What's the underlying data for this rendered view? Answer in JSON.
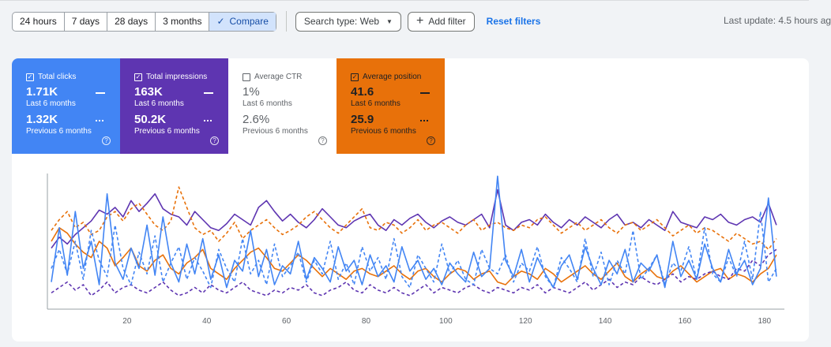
{
  "toolbar": {
    "ranges": [
      "24 hours",
      "7 days",
      "28 days",
      "3 months"
    ],
    "compare_label": "Compare",
    "search_type_label": "Search type: Web",
    "add_filter_label": "Add filter",
    "reset_label": "Reset filters",
    "last_update": "Last update: 4.5 hours ag"
  },
  "metrics": {
    "clicks": {
      "title": "Total clicks",
      "value": "1.71K",
      "period": "Last 6 months",
      "prev_value": "1.32K",
      "prev_period": "Previous 6 months",
      "checked": true,
      "color": "#4285f4"
    },
    "impressions": {
      "title": "Total impressions",
      "value": "163K",
      "period": "Last 6 months",
      "prev_value": "50.2K",
      "prev_period": "Previous 6 months",
      "checked": true,
      "color": "#5e35b1"
    },
    "ctr": {
      "title": "Average CTR",
      "value": "1%",
      "period": "Last 6 months",
      "prev_value": "2.6%",
      "prev_period": "Previous 6 months",
      "checked": false
    },
    "position": {
      "title": "Average position",
      "value": "41.6",
      "period": "Last 6 months",
      "prev_value": "25.9",
      "prev_period": "Previous 6 months",
      "checked": true,
      "color": "#e8710a"
    }
  },
  "chart_data": {
    "type": "line",
    "xlim": [
      0,
      185
    ],
    "ylim": [
      0,
      100
    ],
    "xticks": [
      20,
      40,
      60,
      80,
      100,
      120,
      140,
      160,
      180
    ],
    "x": [
      1,
      3,
      5,
      7,
      9,
      11,
      13,
      15,
      17,
      19,
      21,
      23,
      25,
      27,
      29,
      31,
      33,
      35,
      37,
      39,
      41,
      43,
      45,
      47,
      49,
      51,
      53,
      55,
      57,
      59,
      61,
      63,
      65,
      67,
      69,
      71,
      73,
      75,
      77,
      79,
      81,
      83,
      85,
      87,
      89,
      91,
      93,
      95,
      97,
      99,
      101,
      103,
      105,
      107,
      109,
      111,
      113,
      115,
      117,
      119,
      121,
      123,
      125,
      127,
      129,
      131,
      133,
      135,
      137,
      139,
      141,
      143,
      145,
      147,
      149,
      151,
      153,
      155,
      157,
      159,
      161,
      163,
      165,
      167,
      169,
      171,
      173,
      175,
      177,
      179,
      181,
      183
    ],
    "series": [
      {
        "color": "#5e35b1",
        "style": "solid",
        "values": [
          45,
          53,
          48,
          55,
          60,
          65,
          73,
          70,
          75,
          68,
          80,
          72,
          78,
          85,
          74,
          70,
          68,
          62,
          72,
          66,
          60,
          58,
          63,
          70,
          66,
          62,
          75,
          80,
          72,
          65,
          70,
          64,
          60,
          66,
          74,
          68,
          62,
          60,
          65,
          68,
          70,
          62,
          58,
          66,
          62,
          67,
          70,
          64,
          60,
          65,
          68,
          64,
          62,
          66,
          70,
          60,
          88,
          62,
          58,
          64,
          66,
          62,
          70,
          64,
          60,
          66,
          62,
          68,
          64,
          60,
          66,
          70,
          62,
          64,
          60,
          66,
          62,
          58,
          72,
          64,
          62,
          60,
          68,
          66,
          70,
          64,
          62,
          66,
          68,
          64,
          78,
          62
        ]
      },
      {
        "color": "#e8710a",
        "style": "solid",
        "values": [
          50,
          60,
          56,
          48,
          42,
          38,
          50,
          45,
          32,
          38,
          45,
          32,
          28,
          36,
          40,
          30,
          26,
          34,
          38,
          44,
          30,
          26,
          22,
          30,
          36,
          42,
          45,
          38,
          30,
          28,
          34,
          40,
          36,
          30,
          24,
          30,
          26,
          22,
          28,
          30,
          26,
          24,
          28,
          32,
          26,
          22,
          28,
          30,
          24,
          20,
          26,
          30,
          28,
          22,
          26,
          28,
          20,
          18,
          24,
          28,
          26,
          22,
          30,
          26,
          20,
          24,
          28,
          32,
          26,
          22,
          28,
          34,
          24,
          20,
          26,
          30,
          24,
          22,
          28,
          32,
          26,
          20,
          24,
          28,
          30,
          22,
          26,
          24,
          20,
          26,
          30,
          40
        ]
      },
      {
        "color": "#e8710a",
        "style": "dashed",
        "values": [
          58,
          66,
          72,
          60,
          64,
          55,
          58,
          68,
          72,
          65,
          74,
          78,
          70,
          62,
          58,
          65,
          90,
          75,
          60,
          55,
          58,
          50,
          56,
          64,
          52,
          58,
          62,
          66,
          60,
          55,
          58,
          62,
          68,
          72,
          66,
          60,
          56,
          62,
          68,
          74,
          60,
          58,
          64,
          62,
          56,
          60,
          66,
          58,
          62,
          64,
          60,
          56,
          62,
          66,
          58,
          62,
          64,
          60,
          58,
          62,
          60,
          66,
          68,
          62,
          56,
          60,
          64,
          58,
          62,
          66,
          60,
          56,
          62,
          64,
          58,
          62,
          66,
          60,
          54,
          58,
          62,
          56,
          60,
          58,
          54,
          50,
          56,
          52,
          48,
          50,
          44,
          52
        ]
      },
      {
        "color": "#5e35b1",
        "style": "dashed",
        "values": [
          12,
          16,
          20,
          14,
          18,
          10,
          14,
          20,
          12,
          16,
          18,
          14,
          12,
          16,
          20,
          14,
          10,
          12,
          16,
          12,
          18,
          14,
          12,
          16,
          20,
          14,
          12,
          10,
          14,
          12,
          16,
          14,
          18,
          12,
          10,
          14,
          16,
          20,
          14,
          12,
          18,
          14,
          12,
          16,
          12,
          10,
          14,
          18,
          12,
          16,
          14,
          12,
          16,
          18,
          14,
          12,
          16,
          14,
          12,
          16,
          14,
          18,
          12,
          16,
          14,
          12,
          16,
          20,
          14,
          18,
          22,
          16,
          20,
          18,
          24,
          20,
          18,
          22,
          26,
          20,
          24,
          22,
          26,
          28,
          24,
          22,
          30,
          28,
          36,
          32,
          40,
          44
        ]
      },
      {
        "color": "#4285f4",
        "style": "solid",
        "values": [
          20,
          60,
          25,
          72,
          30,
          50,
          18,
          85,
          34,
          22,
          45,
          30,
          62,
          25,
          68,
          34,
          20,
          48,
          26,
          52,
          22,
          40,
          16,
          36,
          28,
          58,
          24,
          44,
          18,
          32,
          26,
          50,
          22,
          38,
          30,
          20,
          46,
          28,
          36,
          18,
          40,
          24,
          32,
          20,
          46,
          28,
          36,
          22,
          30,
          18,
          34,
          26,
          20,
          42,
          24,
          30,
          98,
          36,
          24,
          44,
          20,
          38,
          26,
          16,
          32,
          40,
          22,
          46,
          30,
          18,
          36,
          26,
          44,
          20,
          34,
          28,
          40,
          16,
          50,
          24,
          36,
          22,
          48,
          30,
          20,
          44,
          26,
          36,
          18,
          30,
          82,
          24
        ]
      },
      {
        "color": "#4285f4",
        "style": "dashed",
        "values": [
          30,
          44,
          26,
          50,
          22,
          58,
          36,
          24,
          62,
          30,
          18,
          42,
          26,
          54,
          20,
          34,
          46,
          22,
          38,
          28,
          16,
          44,
          30,
          20,
          52,
          26,
          36,
          18,
          48,
          24,
          32,
          42,
          20,
          36,
          26,
          50,
          22,
          34,
          18,
          46,
          28,
          38,
          22,
          52,
          24,
          16,
          40,
          30,
          20,
          48,
          26,
          36,
          22,
          18,
          44,
          30,
          26,
          40,
          20,
          34,
          28,
          46,
          24,
          16,
          38,
          30,
          20,
          52,
          24,
          42,
          18,
          36,
          26,
          58,
          22,
          30,
          40,
          18,
          34,
          28,
          46,
          22,
          60,
          26,
          20,
          38,
          24,
          50,
          22,
          72,
          20,
          30
        ]
      }
    ]
  }
}
